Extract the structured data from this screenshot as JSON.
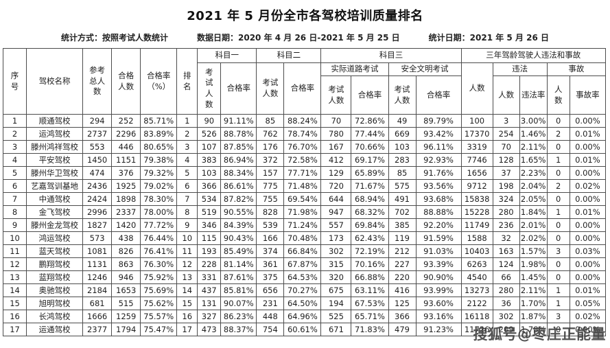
{
  "title": "2021 年 5 月份全市各驾校培训质量排名",
  "meta": {
    "stat_method": "统计方式：按照考试人数统计",
    "data_date": "数据日期：2020 年 4 月 26 日-2021 年 5 月 25 日",
    "stat_date": "统计日期：2021 年 5 月 26 日"
  },
  "table": {
    "headers": {
      "seq": "序号",
      "school": "驾校名称",
      "total": "参考总人数",
      "passed": "合格人数",
      "pass_rate_pct": "合格率（%）",
      "rank": "排名",
      "subject1": "科目一",
      "subject2": "科目二",
      "subject3": "科目三",
      "three_year": "三年驾龄驾驶人违法和事故",
      "exam_count": "考试人数",
      "pass_rate": "合格率",
      "road_test": "实际道路考试",
      "civil_test": "安全文明考试",
      "count": "人数",
      "violation": "违法",
      "violation_rate": "违法率",
      "accident": "事故",
      "accident_rate": "事故率"
    },
    "rows": [
      [
        "1",
        "顺通驾校",
        "294",
        "252",
        "85.71%",
        "1",
        "90",
        "91.11%",
        "85",
        "88.24%",
        "70",
        "72.86%",
        "49",
        "89.79%",
        "100",
        "3",
        "3.00%",
        "0",
        "0.00%"
      ],
      [
        "2",
        "运鸿驾校",
        "2737",
        "2296",
        "83.89%",
        "2",
        "526",
        "88.78%",
        "762",
        "78.74%",
        "780",
        "77.44%",
        "669",
        "93.42%",
        "17370",
        "254",
        "1.46%",
        "2",
        "0.01%"
      ],
      [
        "3",
        "滕州鸿祥驾校",
        "553",
        "446",
        "80.65%",
        "3",
        "107",
        "87.85%",
        "176",
        "76.70%",
        "167",
        "70.66%",
        "103",
        "96.11%",
        "3319",
        "70",
        "2.11%",
        "0",
        "0.00%"
      ],
      [
        "4",
        "平安驾校",
        "1450",
        "1151",
        "79.38%",
        "4",
        "383",
        "86.94%",
        "372",
        "72.58%",
        "412",
        "69.17%",
        "283",
        "92.93%",
        "7746",
        "128",
        "1.65%",
        "1",
        "0.01%"
      ],
      [
        "5",
        "滕州华卫驾校",
        "474",
        "376",
        "79.32%",
        "5",
        "103",
        "88.34%",
        "157",
        "77.71%",
        "129",
        "65.89%",
        "85",
        "91.76%",
        "1656",
        "37",
        "2.23%",
        "0",
        "0.00%"
      ],
      [
        "6",
        "艺嘉驾训基地",
        "2436",
        "1925",
        "79.02%",
        "6",
        "366",
        "86.61%",
        "775",
        "71.48%",
        "720",
        "71.67%",
        "575",
        "93.56%",
        "9712",
        "198",
        "2.04%",
        "2",
        "0.02%"
      ],
      [
        "7",
        "中通驾校",
        "2424",
        "1898",
        "78.30%",
        "7",
        "534",
        "87.82%",
        "755",
        "69.54%",
        "644",
        "68.94%",
        "491",
        "93.68%",
        "15838",
        "324",
        "2.05%",
        "0",
        "0.00%"
      ],
      [
        "8",
        "金飞驾校",
        "2996",
        "2337",
        "78.00%",
        "8",
        "519",
        "90.55%",
        "828",
        "71.98%",
        "947",
        "68.32%",
        "702",
        "88.88%",
        "15228",
        "280",
        "1.84%",
        "1",
        "0.01%"
      ],
      [
        "9",
        "滕州金龙驾校",
        "1827",
        "1420",
        "77.72%",
        "9",
        "346",
        "84.39%",
        "539",
        "71.24%",
        "557",
        "69.84%",
        "385",
        "92.20%",
        "11749",
        "236",
        "2.01%",
        "0",
        "0.00%"
      ],
      [
        "10",
        "鸿运驾校",
        "573",
        "438",
        "76.44%",
        "10",
        "115",
        "90.43%",
        "166",
        "70.48%",
        "173",
        "62.43%",
        "119",
        "91.59%",
        "1588",
        "32",
        "2.02%",
        "0",
        "0.00%"
      ],
      [
        "11",
        "蓝天驾校",
        "1081",
        "826",
        "76.41%",
        "11",
        "193",
        "85.49%",
        "374",
        "66.84%",
        "302",
        "72.19%",
        "212",
        "91.03%",
        "10403",
        "163",
        "1.57%",
        "3",
        "0.03%"
      ],
      [
        "12",
        "鹏翔驾校",
        "1131",
        "863",
        "76.30%",
        "12",
        "228",
        "81.14%",
        "361",
        "67.87%",
        "315",
        "70.16%",
        "227",
        "93.39%",
        "6263",
        "124",
        "1.98%",
        "0",
        "0.00%"
      ],
      [
        "13",
        "蓝翔驾校",
        "1246",
        "946",
        "75.92%",
        "13",
        "331",
        "87.61%",
        "375",
        "64.53%",
        "320",
        "66.88%",
        "220",
        "90.90%",
        "4540",
        "66",
        "1.45%",
        "0",
        "0.00%"
      ],
      [
        "14",
        "奥驰驾校",
        "2184",
        "1653",
        "75.69%",
        "14",
        "437",
        "85.81%",
        "656",
        "70.27%",
        "675",
        "63.11%",
        "416",
        "93.99%",
        "13273",
        "280",
        "2.11%",
        "1",
        "0.01%"
      ],
      [
        "15",
        "旭明驾校",
        "681",
        "515",
        "75.62%",
        "15",
        "131",
        "90.07%",
        "231",
        "64.50%",
        "194",
        "67.53%",
        "125",
        "93.60%",
        "2122",
        "36",
        "1.70%",
        "1",
        "0.05%"
      ],
      [
        "16",
        "长鸿驾校",
        "1666",
        "1259",
        "75.57%",
        "16",
        "327",
        "86.23%",
        "448",
        "64.96%",
        "525",
        "65.71%",
        "366",
        "93.16%",
        "16118",
        "302",
        "1.87%",
        "3",
        "0.02%"
      ],
      [
        "17",
        "运通驾校",
        "2377",
        "1794",
        "75.47%",
        "17",
        "473",
        "88.37%",
        "754",
        "60.61%",
        "671",
        "71.83%",
        "479",
        "91.23%",
        "11726",
        "209",
        "1.78%",
        "0",
        "0.00%"
      ]
    ]
  },
  "watermark": "搜狐号@枣庄正能量"
}
